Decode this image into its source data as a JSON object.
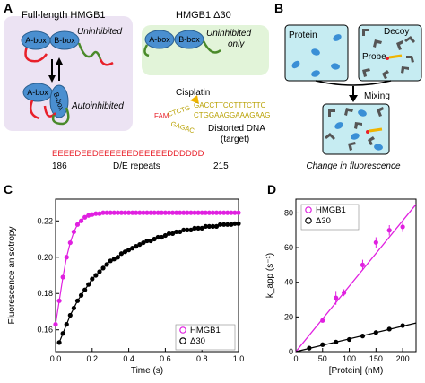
{
  "panels": {
    "A": {
      "letter": "A",
      "fl_title": "Full-length HMGB1",
      "uninhibited": "Uninhibited",
      "autoinhibited": "Autoinhibited",
      "abox": "A-box",
      "bbox": "B-box",
      "d30_title": "HMGB1 Δ30",
      "d30_state": "Uninhibited",
      "d30_state2": "only",
      "cisplatin": "Cisplatin",
      "fam": "FAM",
      "dna_top": "GACCTTCCTTTCTTC",
      "dna_bottom": "CTGGAAGGAAAGAAG",
      "dna_left_top": "CTCTG",
      "dna_left_bottom": "GAGAC",
      "dna_caption": "Distorted DNA",
      "dna_caption2": "(target)",
      "de_sequence": "EEEEDEEDEEEEEEDEEEEEDDDDDD",
      "de_start": "186",
      "de_label": "D/E repeats",
      "de_end": "215",
      "colors": {
        "red": "#e8202a",
        "green": "#4a8a2a",
        "blue": "#4a8fd0",
        "lavender": "#ece3f3",
        "mint": "#e2f4d9",
        "gold": "#b8a000"
      }
    },
    "B": {
      "letter": "B",
      "protein": "Protein",
      "decoy": "Decoy",
      "probe": "Probe",
      "mixing": "Mixing",
      "caption": "Change in fluorescence",
      "colors": {
        "box": "#c6ecf2",
        "protein": "#3a8fd6",
        "decoy": "#555555",
        "probe": "#f0b400"
      }
    }
  },
  "chart_data": [
    {
      "panel": "C",
      "type": "scatter",
      "xlabel": "Time (s)",
      "ylabel": "Fluorescence anisotropy",
      "xlim": [
        0,
        1.0
      ],
      "ylim": [
        0.148,
        0.232
      ],
      "xticks": [
        "0.0",
        "0.2",
        "0.4",
        "0.6",
        "0.8",
        "1.0"
      ],
      "yticks": [
        "0.16",
        "0.18",
        "0.20",
        "0.22"
      ],
      "grid": false,
      "legend": "bottom-right",
      "series": [
        {
          "name": "HMGB1",
          "color": "#e020e0",
          "marker": "filled",
          "x": [
            0,
            0.02,
            0.04,
            0.06,
            0.08,
            0.1,
            0.12,
            0.14,
            0.16,
            0.18,
            0.2,
            0.22,
            0.24,
            0.26,
            0.28,
            0.3,
            0.32,
            0.34,
            0.36,
            0.38,
            0.4,
            0.42,
            0.44,
            0.46,
            0.48,
            0.5,
            0.52,
            0.54,
            0.56,
            0.58,
            0.6,
            0.62,
            0.64,
            0.66,
            0.68,
            0.7,
            0.72,
            0.74,
            0.76,
            0.78,
            0.8,
            0.82,
            0.84,
            0.86,
            0.88,
            0.9,
            0.92,
            0.94,
            0.96,
            0.98,
            1.0
          ],
          "y": [
            0.163,
            0.176,
            0.189,
            0.2,
            0.208,
            0.214,
            0.218,
            0.22,
            0.222,
            0.223,
            0.2235,
            0.224,
            0.224,
            0.2245,
            0.2245,
            0.2245,
            0.2245,
            0.2245,
            0.2245,
            0.2245,
            0.2245,
            0.2245,
            0.2245,
            0.2245,
            0.2245,
            0.2245,
            0.2245,
            0.2245,
            0.2245,
            0.2245,
            0.2245,
            0.2245,
            0.2245,
            0.2245,
            0.2245,
            0.2245,
            0.2245,
            0.2245,
            0.2245,
            0.2245,
            0.2245,
            0.2245,
            0.2245,
            0.2245,
            0.2245,
            0.2245,
            0.2245,
            0.2245,
            0.2245,
            0.2245,
            0.2245
          ]
        },
        {
          "name": "Δ30",
          "color": "#000000",
          "marker": "filled",
          "x": [
            0.02,
            0.04,
            0.06,
            0.08,
            0.1,
            0.12,
            0.14,
            0.16,
            0.18,
            0.2,
            0.22,
            0.24,
            0.26,
            0.28,
            0.3,
            0.32,
            0.34,
            0.36,
            0.38,
            0.4,
            0.42,
            0.44,
            0.46,
            0.48,
            0.5,
            0.52,
            0.54,
            0.56,
            0.58,
            0.6,
            0.62,
            0.64,
            0.66,
            0.68,
            0.7,
            0.72,
            0.74,
            0.76,
            0.78,
            0.8,
            0.82,
            0.84,
            0.86,
            0.88,
            0.9,
            0.92,
            0.94,
            0.96,
            0.98,
            1.0
          ],
          "y": [
            0.153,
            0.158,
            0.163,
            0.168,
            0.172,
            0.176,
            0.179,
            0.182,
            0.185,
            0.188,
            0.19,
            0.192,
            0.194,
            0.196,
            0.198,
            0.199,
            0.2,
            0.202,
            0.203,
            0.204,
            0.205,
            0.206,
            0.207,
            0.208,
            0.209,
            0.209,
            0.21,
            0.211,
            0.211,
            0.212,
            0.213,
            0.213,
            0.214,
            0.214,
            0.215,
            0.215,
            0.215,
            0.216,
            0.216,
            0.216,
            0.217,
            0.217,
            0.217,
            0.217,
            0.218,
            0.218,
            0.218,
            0.218,
            0.2185,
            0.2185
          ]
        }
      ]
    },
    {
      "panel": "D",
      "type": "scatter",
      "xlabel": "[Protein] (nM)",
      "ylabel": "k_app (s⁻¹)",
      "xlim": [
        0,
        225
      ],
      "ylim": [
        0,
        88
      ],
      "xticks": [
        "0",
        "50",
        "100",
        "150",
        "200"
      ],
      "yticks": [
        "0",
        "20",
        "40",
        "60",
        "80"
      ],
      "grid": false,
      "legend": "top-left",
      "series": [
        {
          "name": "HMGB1",
          "color": "#e020e0",
          "x": [
            50,
            75,
            90,
            125,
            150,
            175,
            200
          ],
          "y": [
            18,
            31,
            34,
            50,
            63,
            70,
            72
          ],
          "err": [
            0,
            4,
            2,
            3,
            3,
            3,
            3
          ],
          "fit": [
            [
              0,
              0
            ],
            [
              225,
              85
            ]
          ]
        },
        {
          "name": "Δ30",
          "color": "#000000",
          "x": [
            25,
            50,
            75,
            100,
            125,
            150,
            175,
            200
          ],
          "y": [
            2.0,
            4.0,
            5.5,
            7.0,
            9.0,
            11.0,
            13.0,
            15.0
          ],
          "err": [
            0,
            0,
            0,
            0,
            0,
            0,
            0,
            0
          ],
          "fit": [
            [
              0,
              0
            ],
            [
              225,
              16.5
            ]
          ]
        }
      ]
    }
  ],
  "labels": {
    "C": "C",
    "D": "D"
  }
}
